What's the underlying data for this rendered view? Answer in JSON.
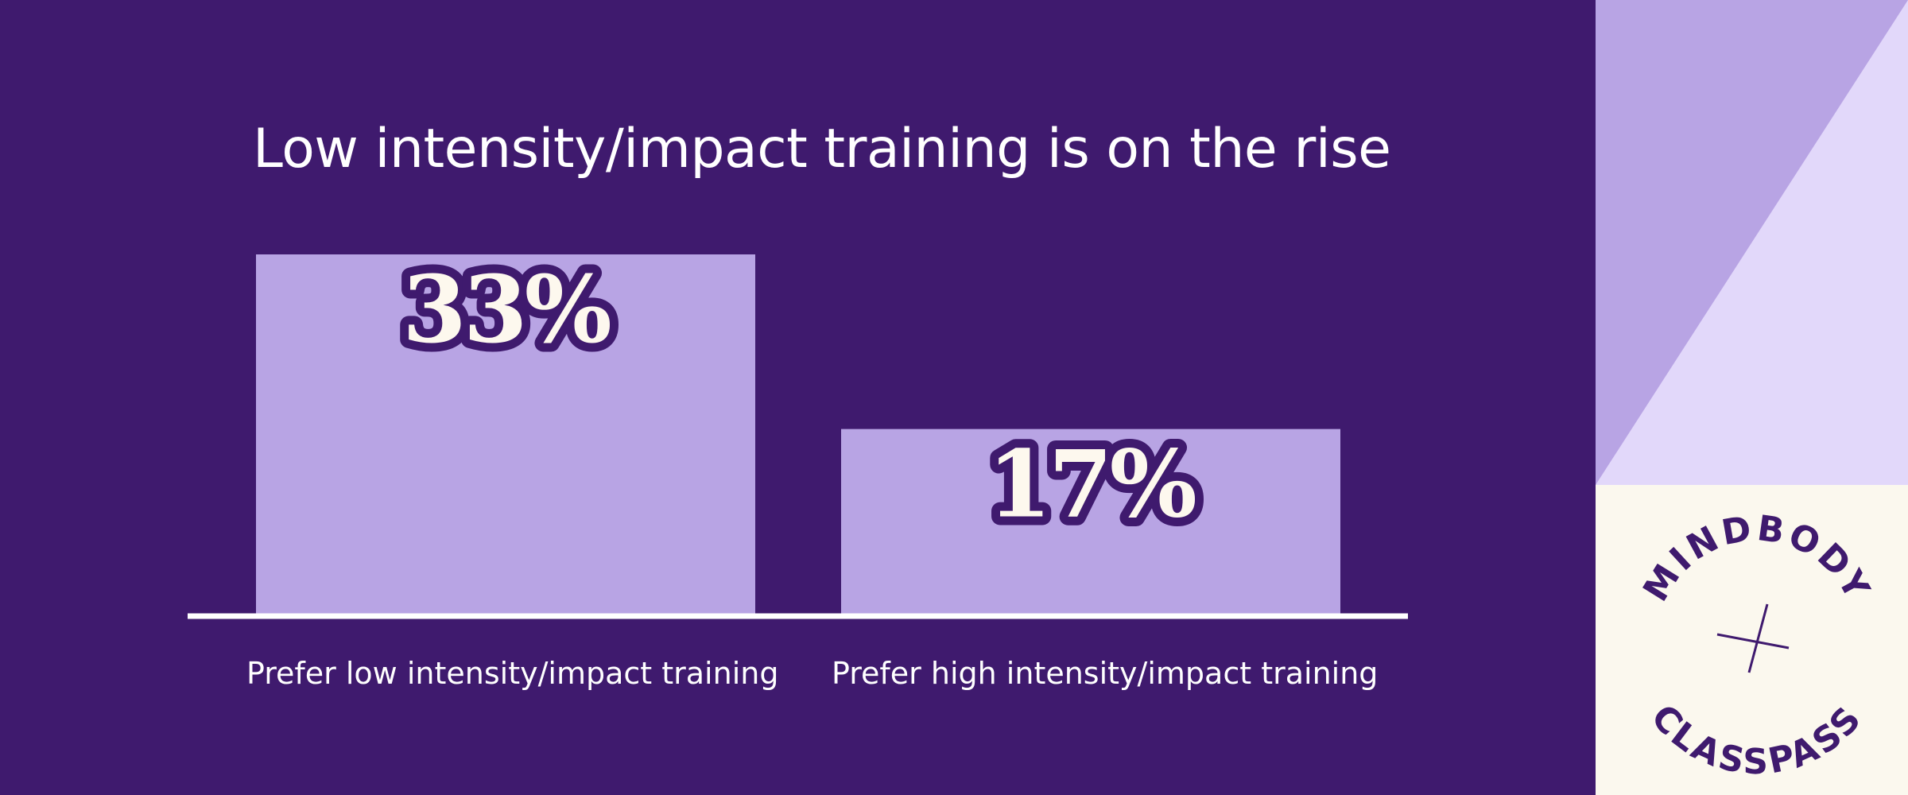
{
  "chart_data": {
    "type": "bar",
    "title": "Low intensity/impact training is on the rise",
    "categories": [
      "Prefer low intensity/impact training",
      "Prefer high intensity/impact training"
    ],
    "values": [
      33,
      17
    ],
    "value_labels": [
      "33%",
      "17%"
    ],
    "ylim": [
      0,
      33
    ],
    "grid": false,
    "colors": {
      "bar": "#b8a4e4",
      "background": "#3f1a6e",
      "label": "#fdf8ee"
    }
  },
  "brand": {
    "logo_top": "MINDBODY",
    "logo_bottom": "CLASSPASS",
    "logo_mark": "×",
    "colors": {
      "light": "#b8a4e4",
      "lighter": "#e2d8fa",
      "cream": "#fbf8ee"
    }
  }
}
